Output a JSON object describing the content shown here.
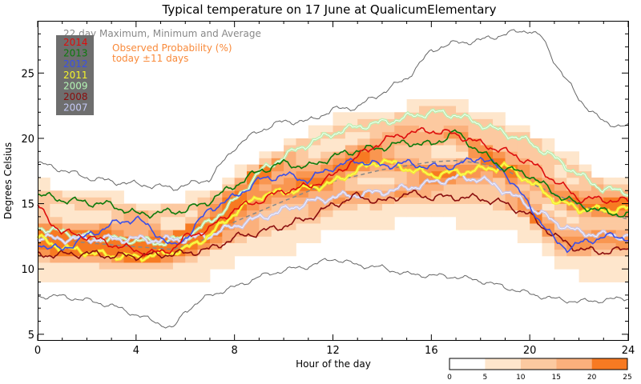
{
  "chart_data": {
    "type": "line",
    "title": "Typical temperature on 17 June at QualicumElementary",
    "subtitle": "22 day Maximum, Minimum and Average",
    "xlabel": "Hour of the day",
    "ylabel": "Degrees Celsius",
    "xlim": [
      0,
      24
    ],
    "ylim": [
      4.5,
      29
    ],
    "x_ticks": [
      0,
      4,
      8,
      12,
      16,
      20,
      24
    ],
    "y_ticks": [
      5,
      10,
      15,
      20,
      25
    ],
    "prob_label_line1": "Observed Probability (%)",
    "prob_label_line2": "today ±11 days",
    "colorbar": {
      "ticks": [
        0,
        5,
        10,
        15,
        20,
        25
      ],
      "colors": [
        "#ffffff",
        "#fee6cc",
        "#fcc9a0",
        "#fbb07c",
        "#f99650",
        "#f77a22"
      ]
    },
    "prob_color": "#f98a3a",
    "legend": [
      {
        "name": "2014",
        "color": "#dd0d0d"
      },
      {
        "name": "2013",
        "color": "#0c7a0c"
      },
      {
        "name": "2012",
        "color": "#3a4fe8"
      },
      {
        "name": "2011",
        "color": "#f4f42a"
      },
      {
        "name": "2009",
        "color": "#b4f4b4"
      },
      {
        "name": "2008",
        "color": "#8a0e0e"
      },
      {
        "name": "2007",
        "color": "#c4c8f4"
      }
    ],
    "max_line": {
      "x": [
        0,
        1,
        2,
        3,
        4,
        5,
        5.5,
        6,
        7,
        8,
        9,
        10,
        11,
        12,
        13,
        14,
        15,
        16,
        16.5,
        17,
        18,
        19,
        20,
        20.5,
        21,
        22,
        23,
        24
      ],
      "y": [
        18.1,
        17.6,
        17.0,
        16.7,
        16.5,
        16.3,
        16.2,
        16.4,
        16.9,
        19.3,
        20.6,
        21.3,
        21.3,
        22.2,
        22.4,
        23.5,
        24.6,
        26.7,
        27.1,
        27.3,
        27.5,
        28.0,
        28.3,
        27.7,
        25.9,
        23.0,
        21.2,
        20.9
      ]
    },
    "min_line": {
      "x": [
        0,
        1,
        2,
        3,
        4,
        5,
        5.5,
        6,
        7,
        8,
        9,
        10,
        11,
        12,
        13,
        14,
        15,
        16,
        17,
        18,
        19,
        20,
        21,
        22,
        23,
        24
      ],
      "y": [
        7.9,
        7.9,
        7.6,
        7.2,
        6.5,
        5.8,
        5.4,
        6.8,
        8.0,
        8.6,
        9.4,
        9.9,
        10.2,
        10.8,
        10.3,
        10.1,
        9.6,
        9.5,
        9.4,
        9.1,
        8.6,
        8.1,
        7.7,
        7.5,
        7.6,
        7.8
      ]
    },
    "avg_line": {
      "x": [
        0,
        2,
        4,
        5.5,
        7,
        8,
        10,
        12,
        14,
        16,
        17,
        18,
        19,
        20,
        22,
        24
      ],
      "y": [
        12.4,
        12.0,
        11.7,
        11.5,
        12.4,
        13.6,
        15.2,
        16.7,
        17.6,
        18.2,
        18.3,
        18.1,
        17.6,
        16.6,
        14.9,
        13.8
      ]
    },
    "series": [
      {
        "name": "2014",
        "color": "#dd0d0d",
        "x": [
          0,
          0.5,
          1,
          2,
          3,
          4,
          5,
          5.5,
          6,
          7,
          8,
          9,
          10,
          11,
          12,
          13,
          14,
          15,
          16,
          17,
          18,
          19,
          20,
          21,
          22,
          23,
          24
        ],
        "y": [
          14.8,
          13.7,
          12.8,
          12.5,
          11.9,
          11.4,
          11.2,
          11.6,
          12.4,
          13.1,
          14.6,
          15.2,
          16.0,
          16.3,
          17.1,
          18.6,
          19.8,
          20.4,
          20.6,
          20.3,
          19.6,
          19.0,
          18.2,
          16.8,
          15.4,
          15.3,
          15.2
        ]
      },
      {
        "name": "2013",
        "color": "#0c7a0c",
        "x": [
          0,
          1,
          2,
          3,
          4,
          5,
          6,
          7,
          8,
          9,
          10,
          11,
          12,
          13,
          14,
          15,
          16,
          17,
          18,
          19,
          20,
          21,
          22,
          23,
          24
        ],
        "y": [
          15.7,
          15.3,
          15.1,
          14.9,
          14.2,
          14.3,
          14.5,
          15.2,
          16.4,
          17.5,
          18.1,
          17.8,
          18.6,
          19.1,
          19.3,
          19.7,
          19.5,
          20.5,
          18.9,
          17.7,
          17.2,
          15.8,
          14.9,
          14.4,
          14.1
        ]
      },
      {
        "name": "2012",
        "color": "#3a4fe8",
        "x": [
          0,
          0.5,
          1,
          2,
          3,
          4,
          5,
          5.5,
          6,
          7,
          8,
          9,
          10,
          11,
          12,
          13,
          14,
          15,
          16,
          17,
          18,
          19,
          20,
          21,
          21.5,
          22,
          23,
          24
        ],
        "y": [
          12.0,
          11.6,
          11.5,
          12.5,
          13.4,
          13.9,
          12.5,
          11.6,
          12.4,
          14.6,
          15.5,
          16.8,
          17.2,
          16.8,
          17.8,
          18.3,
          17.9,
          18.1,
          17.8,
          17.9,
          18.6,
          17.4,
          14.8,
          12.2,
          11.6,
          11.9,
          12.5,
          12.4
        ]
      },
      {
        "name": "2011",
        "color": "#f4f42a",
        "x": [
          0,
          1,
          2,
          3,
          4,
          5,
          6,
          7,
          8,
          9,
          10,
          11,
          12,
          13,
          14,
          15,
          16,
          17,
          18,
          19,
          20,
          21,
          22,
          23,
          24
        ],
        "y": [
          12.4,
          11.6,
          11.3,
          11.0,
          10.9,
          11.1,
          11.5,
          12.6,
          14.3,
          15.6,
          15.9,
          16.2,
          16.6,
          17.6,
          18.3,
          17.7,
          17.2,
          17.4,
          17.6,
          17.9,
          16.7,
          15.3,
          14.6,
          14.5,
          14.6
        ]
      },
      {
        "name": "2009",
        "color": "#b4f4b4",
        "x": [
          0,
          1,
          2,
          3,
          4,
          5,
          6,
          7,
          8,
          9,
          10,
          11,
          12,
          13,
          14,
          15,
          16,
          17,
          18,
          19,
          20,
          21,
          22,
          23,
          24
        ],
        "y": [
          13.2,
          12.8,
          12.5,
          12.3,
          12.2,
          12.0,
          12.4,
          13.6,
          15.2,
          17.4,
          18.6,
          19.6,
          20.4,
          20.9,
          21.2,
          21.6,
          22.0,
          21.8,
          21.1,
          20.4,
          19.7,
          18.5,
          17.2,
          16.1,
          15.9
        ]
      },
      {
        "name": "2008",
        "color": "#8a0e0e",
        "x": [
          0,
          1,
          2,
          3,
          4,
          5,
          6,
          7,
          8,
          9,
          10,
          11,
          12,
          13,
          14,
          15,
          16,
          17,
          18,
          19,
          20,
          21,
          22,
          23,
          24
        ],
        "y": [
          11.1,
          11.1,
          11.2,
          11.0,
          11.0,
          11.1,
          11.2,
          11.5,
          12.4,
          12.8,
          13.3,
          13.9,
          14.9,
          15.6,
          15.1,
          15.8,
          15.5,
          15.5,
          15.4,
          15.0,
          14.1,
          12.5,
          11.5,
          11.3,
          11.5
        ]
      },
      {
        "name": "2007",
        "color": "#c4c8f4",
        "x": [
          0,
          1,
          2,
          3,
          4,
          5,
          6,
          7,
          8,
          9,
          10,
          11,
          12,
          13,
          14,
          15,
          16,
          17,
          18,
          19,
          20,
          21,
          22,
          23,
          24
        ],
        "y": [
          12.4,
          12.3,
          12.3,
          12.3,
          12.3,
          12.2,
          12.3,
          12.6,
          13.3,
          13.9,
          14.5,
          15.1,
          15.5,
          15.7,
          15.9,
          16.2,
          16.6,
          17.0,
          16.9,
          16.0,
          14.8,
          13.6,
          12.8,
          12.6,
          12.5
        ]
      }
    ]
  }
}
